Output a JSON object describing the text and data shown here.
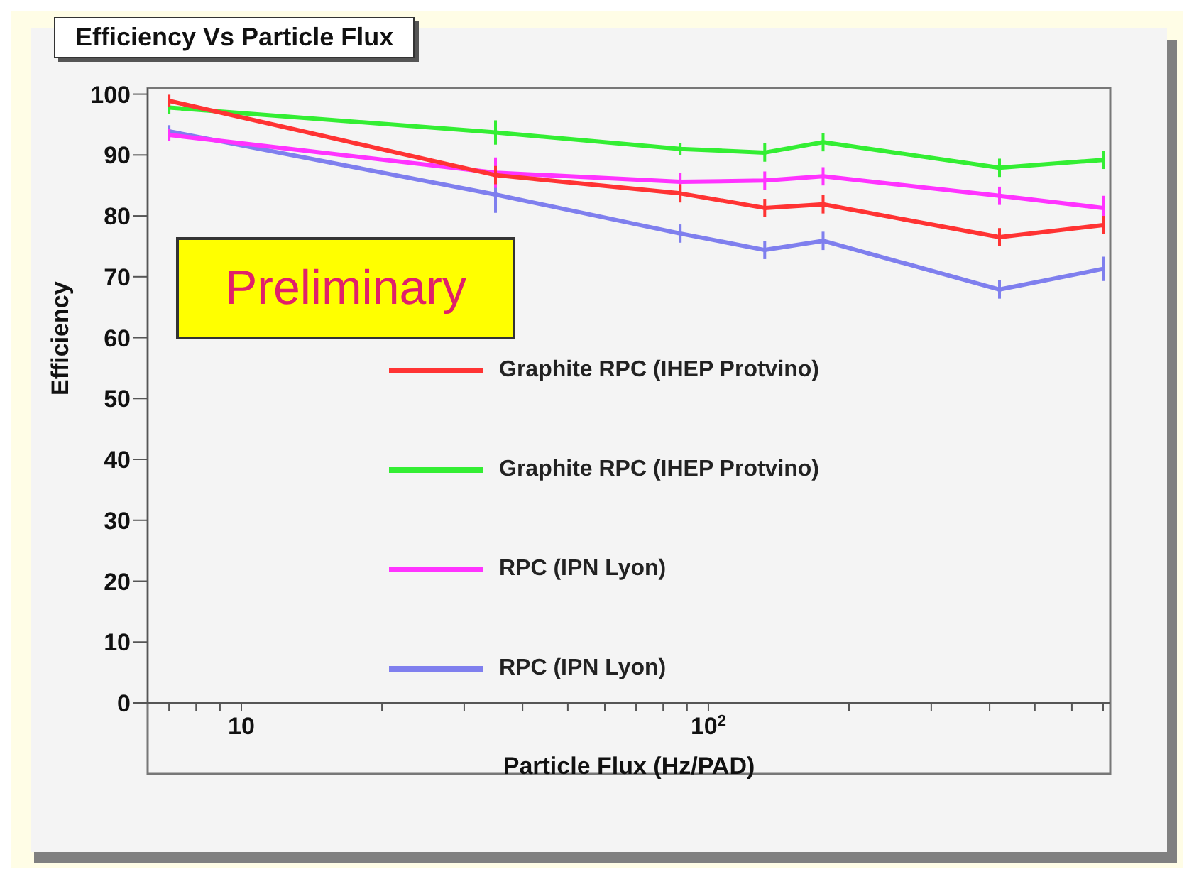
{
  "chart_data": {
    "type": "line",
    "title": "Efficiency Vs Particle Flux",
    "xlabel": "Particle Flux (Hz/PAD)",
    "ylabel": "Efficiency",
    "annotations": [
      "Preliminary"
    ],
    "x": [
      7,
      35,
      87,
      132,
      176,
      420,
      700
    ],
    "series": [
      {
        "name": "Graphite RPC (IHEP Protvino)",
        "color": "#ff3333",
        "values": [
          98.9,
          86.7,
          83.7,
          81.3,
          81.9,
          76.5,
          78.5
        ],
        "errors": [
          1,
          1.5,
          1.5,
          1.5,
          1.5,
          1.5,
          1.5
        ]
      },
      {
        "name": "Graphite RPC (IHEP Protvino)",
        "color": "#33ee33",
        "values": [
          97.8,
          93.7,
          91,
          90.4,
          92.1,
          87.9,
          89.2
        ],
        "errors": [
          1,
          2,
          1,
          1.5,
          1.5,
          1.5,
          1.5
        ]
      },
      {
        "name": "RPC (IPN Lyon)",
        "color": "#ff33ff",
        "values": [
          93.3,
          87.1,
          85.6,
          85.8,
          86.5,
          83.3,
          81.3
        ],
        "errors": [
          1,
          2.5,
          1.5,
          1.5,
          1.5,
          1.5,
          2
        ]
      },
      {
        "name": "RPC (IPN Lyon)",
        "color": "#7f7fee",
        "values": [
          93.9,
          83.5,
          77.1,
          74.4,
          75.9,
          67.9,
          71.3
        ],
        "errors": [
          1,
          3,
          1.5,
          1.5,
          1.5,
          1.5,
          2
        ]
      }
    ],
    "log": "x",
    "xlim": [
      6.3,
      725
    ],
    "xticks": [
      {
        "value": 7,
        "label": null
      },
      {
        "value": 8,
        "label": null
      },
      {
        "value": 9,
        "label": null
      },
      10,
      {
        "value": 20,
        "label": null
      },
      {
        "value": 30,
        "label": null
      },
      {
        "value": 40,
        "label": null
      },
      {
        "value": 50,
        "label": null
      },
      {
        "value": 60,
        "label": null
      },
      {
        "value": 70,
        "label": null
      },
      {
        "value": 80,
        "label": null
      },
      {
        "value": 90,
        "label": null
      },
      {
        "value": 100,
        "label": "10$^{2}$"
      },
      {
        "value": 200,
        "label": null
      },
      {
        "value": 300,
        "label": null
      },
      {
        "value": 400,
        "label": null
      },
      {
        "value": 500,
        "label": null
      },
      {
        "value": 600,
        "label": null
      },
      {
        "value": 700,
        "label": null
      }
    ],
    "ylim": [
      0,
      101
    ],
    "yticks": [
      0,
      10,
      20,
      30,
      40,
      50,
      60,
      70,
      80,
      90,
      100
    ],
    "legend": "center",
    "marker": "none",
    "line_style": "solid"
  }
}
